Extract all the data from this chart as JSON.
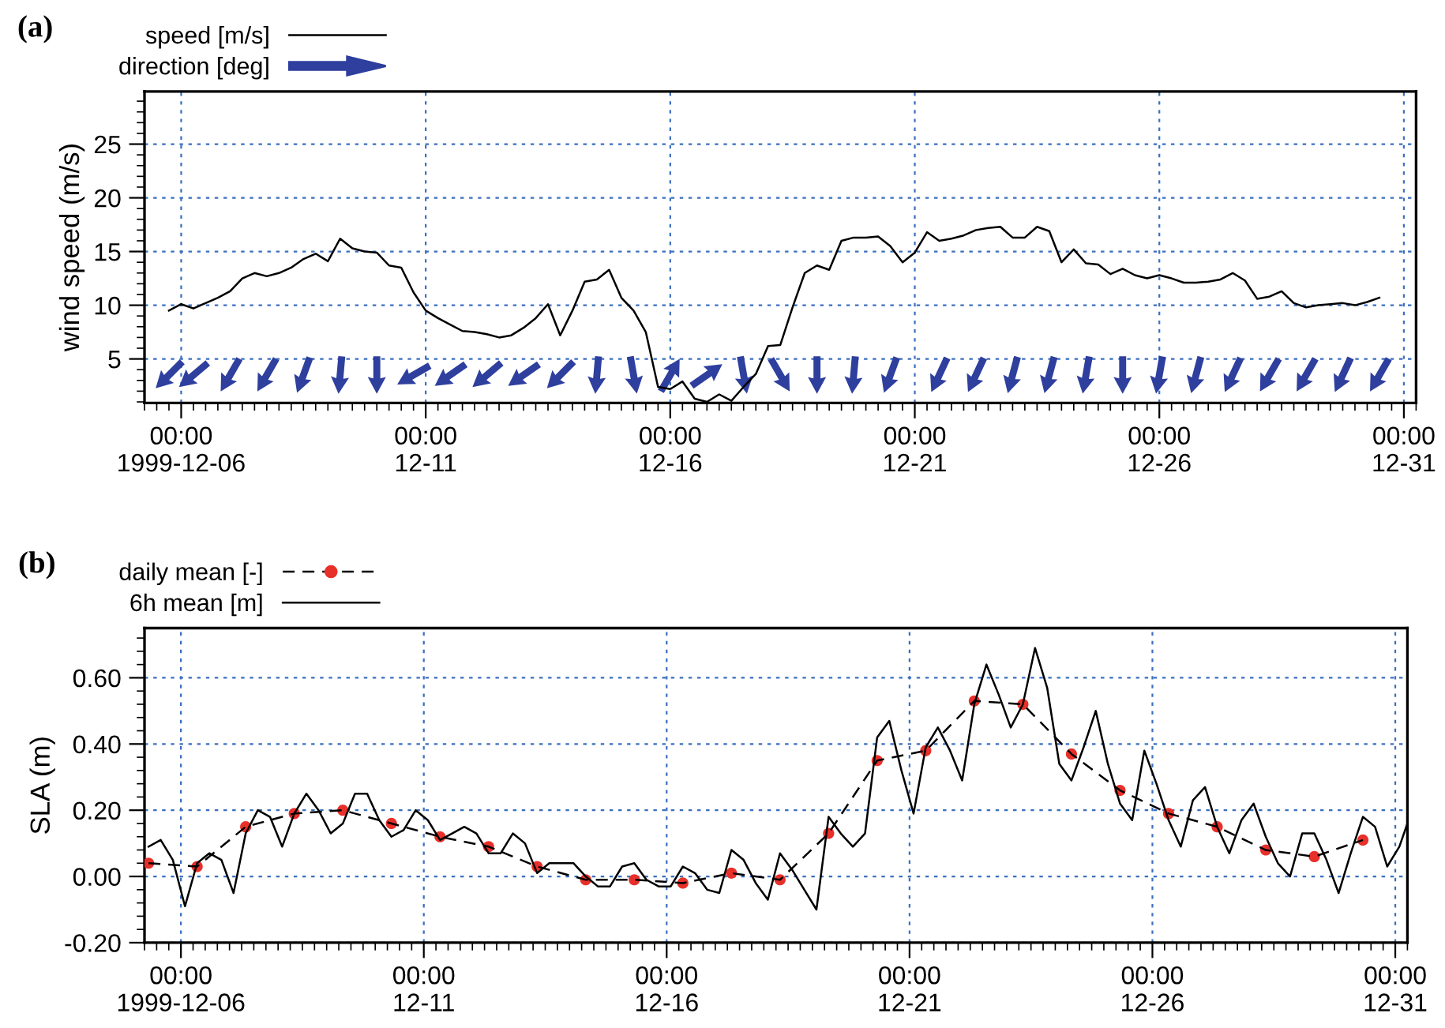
{
  "chart_data": [
    {
      "type": "line",
      "title": "(a)",
      "ylabel": "wind speed (m/s)",
      "xlim": [
        "1999-12-05T06:00",
        "1999-12-31T06:00"
      ],
      "ylim": [
        0.9,
        29.9
      ],
      "yticks": [
        5,
        10,
        15,
        20,
        25
      ],
      "xticks": [
        {
          "value": "1999-12-06",
          "label": "00:00\n1999-12-06"
        },
        {
          "value": "1999-12-11",
          "label": "00:00\n12-11"
        },
        {
          "value": "1999-12-16",
          "label": "00:00\n12-16"
        },
        {
          "value": "1999-12-21",
          "label": "00:00\n12-21"
        },
        {
          "value": "1999-12-26",
          "label": "00:00\n12-26"
        },
        {
          "value": "1999-12-31",
          "label": "00:00\n12-31"
        }
      ],
      "grid": true,
      "legend": "top left",
      "series": [
        {
          "name": "speed [m/s]",
          "color": "#000000",
          "line_style": "solid",
          "x": [
            "1999-12-05T18:00",
            "1999-12-06T00:00",
            "1999-12-06T06:00",
            "1999-12-06T12:00",
            "1999-12-06T18:00",
            "1999-12-07T00:00",
            "1999-12-07T06:00",
            "1999-12-07T12:00",
            "1999-12-07T18:00",
            "1999-12-08T00:00",
            "1999-12-08T06:00",
            "1999-12-08T12:00",
            "1999-12-08T18:00",
            "1999-12-09T00:00",
            "1999-12-09T06:00",
            "1999-12-09T12:00",
            "1999-12-09T18:00",
            "1999-12-10T00:00",
            "1999-12-10T06:00",
            "1999-12-10T12:00",
            "1999-12-10T18:00",
            "1999-12-11T00:00",
            "1999-12-11T06:00",
            "1999-12-11T12:00",
            "1999-12-11T18:00",
            "1999-12-12T00:00",
            "1999-12-12T06:00",
            "1999-12-12T12:00",
            "1999-12-12T18:00",
            "1999-12-13T00:00",
            "1999-12-13T06:00",
            "1999-12-13T12:00",
            "1999-12-13T18:00",
            "1999-12-14T00:00",
            "1999-12-14T06:00",
            "1999-12-14T12:00",
            "1999-12-14T18:00",
            "1999-12-15T00:00",
            "1999-12-15T06:00",
            "1999-12-15T12:00",
            "1999-12-15T18:00",
            "1999-12-16T00:00",
            "1999-12-16T06:00",
            "1999-12-16T12:00",
            "1999-12-16T18:00",
            "1999-12-17T00:00",
            "1999-12-17T06:00",
            "1999-12-17T12:00",
            "1999-12-17T18:00",
            "1999-12-18T00:00",
            "1999-12-18T06:00",
            "1999-12-18T12:00",
            "1999-12-18T18:00",
            "1999-12-19T00:00",
            "1999-12-19T06:00",
            "1999-12-19T12:00",
            "1999-12-19T18:00",
            "1999-12-20T00:00",
            "1999-12-20T06:00",
            "1999-12-20T12:00",
            "1999-12-20T18:00",
            "1999-12-21T00:00",
            "1999-12-21T06:00",
            "1999-12-21T12:00",
            "1999-12-21T18:00",
            "1999-12-22T00:00",
            "1999-12-22T06:00",
            "1999-12-22T12:00",
            "1999-12-22T18:00",
            "1999-12-23T00:00",
            "1999-12-23T06:00",
            "1999-12-23T12:00",
            "1999-12-23T18:00",
            "1999-12-24T00:00",
            "1999-12-24T06:00",
            "1999-12-24T12:00",
            "1999-12-24T18:00",
            "1999-12-25T00:00",
            "1999-12-25T06:00",
            "1999-12-25T12:00",
            "1999-12-25T18:00",
            "1999-12-26T00:00",
            "1999-12-26T06:00",
            "1999-12-26T12:00",
            "1999-12-26T18:00",
            "1999-12-27T00:00",
            "1999-12-27T06:00",
            "1999-12-27T12:00",
            "1999-12-27T18:00",
            "1999-12-28T00:00",
            "1999-12-28T06:00",
            "1999-12-28T12:00",
            "1999-12-28T18:00",
            "1999-12-29T00:00",
            "1999-12-29T06:00",
            "1999-12-29T12:00",
            "1999-12-29T18:00",
            "1999-12-30T00:00",
            "1999-12-30T06:00",
            "1999-12-30T12:00"
          ],
          "values": [
            9.5,
            10.1,
            9.7,
            10.2,
            10.7,
            11.3,
            12.5,
            13.0,
            12.7,
            13.0,
            13.5,
            14.3,
            14.8,
            14.1,
            16.2,
            15.3,
            15.0,
            14.9,
            13.7,
            13.5,
            11.2,
            9.5,
            8.8,
            8.2,
            7.6,
            7.5,
            7.3,
            7.0,
            7.2,
            7.9,
            8.8,
            10.1,
            7.2,
            9.5,
            12.2,
            12.4,
            13.3,
            10.7,
            9.5,
            7.5,
            2.4,
            2.2,
            2.9,
            1.3,
            1.0,
            1.7,
            1.1,
            2.4,
            3.6,
            6.2,
            6.3,
            9.8,
            13.0,
            13.7,
            13.3,
            16.0,
            16.3,
            16.3,
            16.4,
            15.5,
            14.0,
            14.9,
            16.8,
            16.0,
            16.2,
            16.5,
            17.0,
            17.2,
            17.3,
            16.3,
            16.3,
            17.3,
            16.9,
            14.0,
            15.2,
            13.9,
            13.8,
            12.9,
            13.4,
            12.8,
            12.5,
            12.8,
            12.5,
            12.1,
            12.1,
            12.2,
            12.4,
            13.0,
            12.3,
            10.6,
            10.8,
            11.3,
            10.2,
            9.8,
            10.0,
            10.1,
            10.2,
            10.0,
            10.3,
            10.7
          ]
        },
        {
          "name": "direction [deg]",
          "type": "scatter",
          "color": "#2e3f9e",
          "x": [
            "1999-12-05T18:00",
            "1999-12-06T06:00",
            "1999-12-07T00:00",
            "1999-12-07T18:00",
            "1999-12-08T12:00",
            "1999-12-09T06:00",
            "1999-12-10T00:00",
            "1999-12-10T18:00",
            "1999-12-11T12:00",
            "1999-12-12T06:00",
            "1999-12-13T00:00",
            "1999-12-13T18:00",
            "1999-12-14T12:00",
            "1999-12-15T06:00",
            "1999-12-16T00:00",
            "1999-12-16T18:00",
            "1999-12-17T12:00",
            "1999-12-18T06:00",
            "1999-12-19T00:00",
            "1999-12-19T18:00",
            "1999-12-20T12:00",
            "1999-12-21T12:00",
            "1999-12-22T06:00",
            "1999-12-23T00:00",
            "1999-12-23T18:00",
            "1999-12-24T12:00",
            "1999-12-25T06:00",
            "1999-12-26T00:00",
            "1999-12-26T18:00",
            "1999-12-27T12:00",
            "1999-12-28T06:00",
            "1999-12-29T00:00",
            "1999-12-29T18:00",
            "1999-12-30T12:00"
          ],
          "values": [
            3.5,
            3.5,
            3.5,
            3.5,
            3.5,
            3.5,
            3.5,
            3.5,
            3.5,
            3.5,
            3.5,
            3.5,
            3.5,
            3.5,
            3.5,
            3.5,
            3.5,
            3.5,
            3.5,
            3.5,
            3.5,
            3.5,
            3.5,
            3.5,
            3.5,
            3.5,
            3.5,
            3.5,
            3.5,
            3.5,
            3.5,
            3.5,
            3.5,
            3.5
          ]
        }
      ]
    },
    {
      "type": "line",
      "title": "(b)",
      "ylabel": "SLA (m)",
      "xlim": [
        "1999-12-05T06:00",
        "1999-12-31T06:00"
      ],
      "ylim": [
        -0.2,
        0.75
      ],
      "yticks": [
        {
          "value": -0.2,
          "label": "-0.20"
        },
        {
          "value": 0,
          "label": "0.00"
        },
        {
          "value": 0.2,
          "label": "0.20"
        },
        {
          "value": 0.4,
          "label": "0.40"
        },
        {
          "value": 0.6,
          "label": "0.60"
        }
      ],
      "xticks": [
        {
          "value": "1999-12-06",
          "label": "00:00\n1999-12-06"
        },
        {
          "value": "1999-12-11",
          "label": "00:00\n12-11"
        },
        {
          "value": "1999-12-16",
          "label": "00:00\n12-16"
        },
        {
          "value": "1999-12-21",
          "label": "00:00\n12-21"
        },
        {
          "value": "1999-12-26",
          "label": "00:00\n12-26"
        },
        {
          "value": "1999-12-31",
          "label": "00:00\n12-31"
        }
      ],
      "grid": true,
      "legend": "top left",
      "series": [
        {
          "name": "daily mean [-]",
          "color": "#000000",
          "line_style": "dashed",
          "marker": "circle",
          "colors": [
            "#e8302a",
            "#e8302a",
            "#e8302a",
            "#e8302a",
            "#e8302a",
            "#e8302a",
            "#e8302a",
            "#e8302a",
            "#e8302a",
            "#e8302a",
            "#e8302a",
            "#e8302a",
            "#e8302a",
            "#e8302a",
            "#e8302a",
            "#e8302a",
            "#e8302a",
            "#e8302a",
            "#e8302a",
            "#e8302a",
            "#e8302a",
            "#e8302a",
            "#e8302a",
            "#e8302a",
            "#e8302a",
            "#e8302a"
          ],
          "x": [
            "1999-12-05T08:00",
            "1999-12-06T08:00",
            "1999-12-07T08:00",
            "1999-12-08T08:00",
            "1999-12-09T08:00",
            "1999-12-10T08:00",
            "1999-12-11T08:00",
            "1999-12-12T08:00",
            "1999-12-13T08:00",
            "1999-12-14T08:00",
            "1999-12-15T08:00",
            "1999-12-16T08:00",
            "1999-12-17T08:00",
            "1999-12-18T08:00",
            "1999-12-19T08:00",
            "1999-12-20T08:00",
            "1999-12-21T08:00",
            "1999-12-22T08:00",
            "1999-12-23T08:00",
            "1999-12-24T08:00",
            "1999-12-25T08:00",
            "1999-12-26T08:00",
            "1999-12-27T08:00",
            "1999-12-28T08:00",
            "1999-12-29T08:00",
            "1999-12-30T08:00"
          ],
          "values": [
            0.04,
            0.03,
            0.15,
            0.19,
            0.2,
            0.16,
            0.12,
            0.09,
            0.03,
            -0.01,
            -0.01,
            -0.02,
            0.01,
            -0.01,
            0.13,
            0.35,
            0.38,
            0.53,
            0.52,
            0.37,
            0.26,
            0.19,
            0.15,
            0.08,
            0.06,
            0.11
          ]
        },
        {
          "name": "6h mean [m]",
          "color": "#000000",
          "line_style": "solid",
          "x": [
            "1999-12-05T08:00",
            "1999-12-05T14:00",
            "1999-12-05T20:00",
            "1999-12-06T02:00",
            "1999-12-06T08:00",
            "1999-12-06T14:00",
            "1999-12-06T20:00",
            "1999-12-07T02:00",
            "1999-12-07T08:00",
            "1999-12-07T14:00",
            "1999-12-07T20:00",
            "1999-12-08T02:00",
            "1999-12-08T08:00",
            "1999-12-08T14:00",
            "1999-12-08T20:00",
            "1999-12-09T02:00",
            "1999-12-09T08:00",
            "1999-12-09T14:00",
            "1999-12-09T20:00",
            "1999-12-10T02:00",
            "1999-12-10T08:00",
            "1999-12-10T14:00",
            "1999-12-10T20:00",
            "1999-12-11T02:00",
            "1999-12-11T08:00",
            "1999-12-11T14:00",
            "1999-12-11T20:00",
            "1999-12-12T02:00",
            "1999-12-12T08:00",
            "1999-12-12T14:00",
            "1999-12-12T20:00",
            "1999-12-13T02:00",
            "1999-12-13T08:00",
            "1999-12-13T14:00",
            "1999-12-13T20:00",
            "1999-12-14T02:00",
            "1999-12-14T08:00",
            "1999-12-14T14:00",
            "1999-12-14T20:00",
            "1999-12-15T02:00",
            "1999-12-15T08:00",
            "1999-12-15T14:00",
            "1999-12-15T20:00",
            "1999-12-16T02:00",
            "1999-12-16T08:00",
            "1999-12-16T14:00",
            "1999-12-16T20:00",
            "1999-12-17T02:00",
            "1999-12-17T08:00",
            "1999-12-17T14:00",
            "1999-12-17T20:00",
            "1999-12-18T02:00",
            "1999-12-18T08:00",
            "1999-12-18T14:00",
            "1999-12-18T20:00",
            "1999-12-19T02:00",
            "1999-12-19T08:00",
            "1999-12-19T14:00",
            "1999-12-19T20:00",
            "1999-12-20T02:00",
            "1999-12-20T08:00",
            "1999-12-20T14:00",
            "1999-12-20T20:00",
            "1999-12-21T02:00",
            "1999-12-21T08:00",
            "1999-12-21T14:00",
            "1999-12-21T20:00",
            "1999-12-22T02:00",
            "1999-12-22T08:00",
            "1999-12-22T14:00",
            "1999-12-22T20:00",
            "1999-12-23T02:00",
            "1999-12-23T08:00",
            "1999-12-23T14:00",
            "1999-12-23T20:00",
            "1999-12-24T02:00",
            "1999-12-24T08:00",
            "1999-12-24T14:00",
            "1999-12-24T20:00",
            "1999-12-25T02:00",
            "1999-12-25T08:00",
            "1999-12-25T14:00",
            "1999-12-25T20:00",
            "1999-12-26T02:00",
            "1999-12-26T08:00",
            "1999-12-26T14:00",
            "1999-12-26T20:00",
            "1999-12-27T02:00",
            "1999-12-27T08:00",
            "1999-12-27T14:00",
            "1999-12-27T20:00",
            "1999-12-28T02:00",
            "1999-12-28T08:00",
            "1999-12-28T14:00",
            "1999-12-28T20:00",
            "1999-12-29T02:00",
            "1999-12-29T08:00",
            "1999-12-29T14:00",
            "1999-12-29T20:00",
            "1999-12-30T02:00",
            "1999-12-30T08:00",
            "1999-12-30T14:00",
            "1999-12-30T20:00",
            "1999-12-31T02:00",
            "1999-12-31T06:00"
          ],
          "values": [
            0.09,
            0.11,
            0.05,
            -0.09,
            0.04,
            0.07,
            0.05,
            -0.05,
            0.13,
            0.2,
            0.18,
            0.09,
            0.19,
            0.25,
            0.2,
            0.13,
            0.16,
            0.25,
            0.25,
            0.17,
            0.12,
            0.14,
            0.2,
            0.17,
            0.11,
            0.13,
            0.15,
            0.13,
            0.07,
            0.07,
            0.13,
            0.1,
            0.01,
            0.04,
            0.04,
            0.04,
            0.0,
            -0.03,
            -0.03,
            0.03,
            0.04,
            -0.01,
            -0.03,
            -0.03,
            0.03,
            0.01,
            -0.04,
            -0.05,
            0.08,
            0.05,
            -0.02,
            -0.07,
            0.07,
            0.02,
            -0.04,
            -0.1,
            0.18,
            0.13,
            0.09,
            0.13,
            0.42,
            0.47,
            0.32,
            0.19,
            0.39,
            0.45,
            0.38,
            0.29,
            0.52,
            0.64,
            0.55,
            0.45,
            0.52,
            0.69,
            0.57,
            0.34,
            0.29,
            0.39,
            0.5,
            0.34,
            0.22,
            0.17,
            0.38,
            0.28,
            0.17,
            0.09,
            0.23,
            0.27,
            0.15,
            0.07,
            0.17,
            0.22,
            0.12,
            0.04,
            0.0,
            0.13,
            0.13,
            0.05,
            -0.05,
            0.07,
            0.18,
            0.15,
            0.03,
            0.09,
            0.16
          ]
        }
      ]
    }
  ]
}
